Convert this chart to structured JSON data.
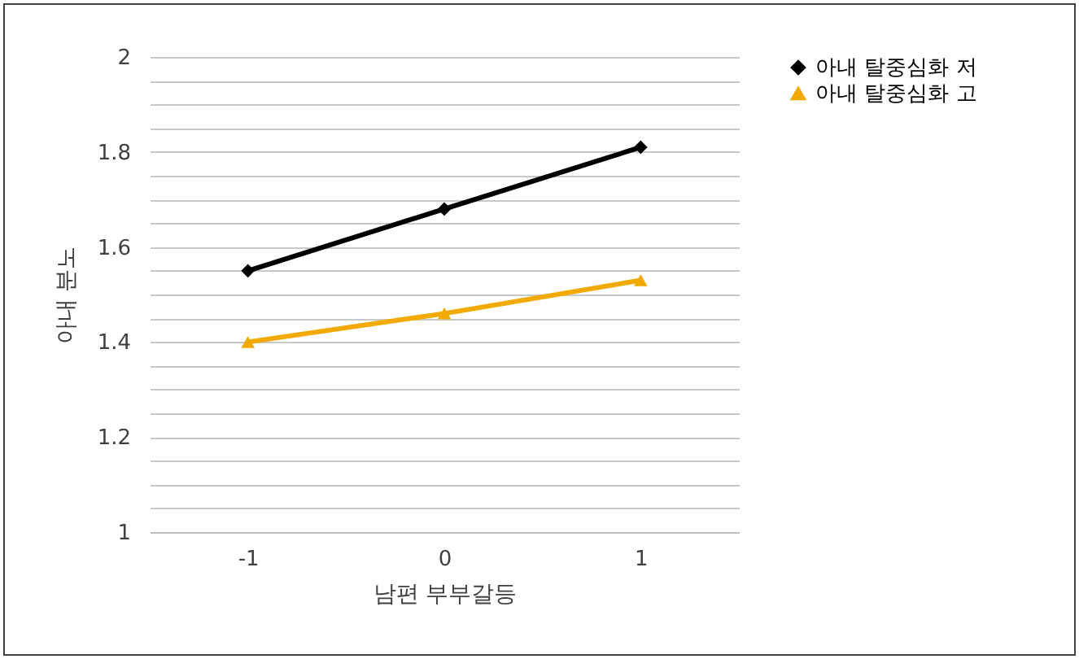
{
  "chart_data": {
    "type": "line",
    "xlabel": "남편 부부갈등",
    "ylabel": "아내 분노",
    "categories": [
      "-1",
      "0",
      "1"
    ],
    "series": [
      {
        "name": "아내 탈중심화 저",
        "color": "#000000",
        "marker": "diamond",
        "values": [
          1.55,
          1.68,
          1.81
        ]
      },
      {
        "name": "아내 탈중심화 고",
        "color": "#f2a900",
        "marker": "triangle",
        "values": [
          1.4,
          1.46,
          1.53
        ]
      }
    ],
    "ylim": [
      1,
      2
    ],
    "yticks": [
      1,
      {
        "value": 1.05,
        "label": null
      },
      {
        "value": 1.1,
        "label": null
      },
      {
        "value": 1.15,
        "label": null
      },
      1.2,
      {
        "value": 1.25,
        "label": null
      },
      {
        "value": 1.3,
        "label": null
      },
      {
        "value": 1.35,
        "label": null
      },
      1.4,
      {
        "value": 1.45,
        "label": null
      },
      {
        "value": 1.5,
        "label": null
      },
      {
        "value": 1.55,
        "label": null
      },
      1.6,
      {
        "value": 1.65,
        "label": null
      },
      {
        "value": 1.7,
        "label": null
      },
      {
        "value": 1.75,
        "label": null
      },
      1.8,
      {
        "value": 1.85,
        "label": null
      },
      {
        "value": 1.9,
        "label": null
      },
      {
        "value": 1.95,
        "label": null
      },
      2
    ],
    "grid": "y",
    "legend": "right",
    "line_style": "solid"
  }
}
